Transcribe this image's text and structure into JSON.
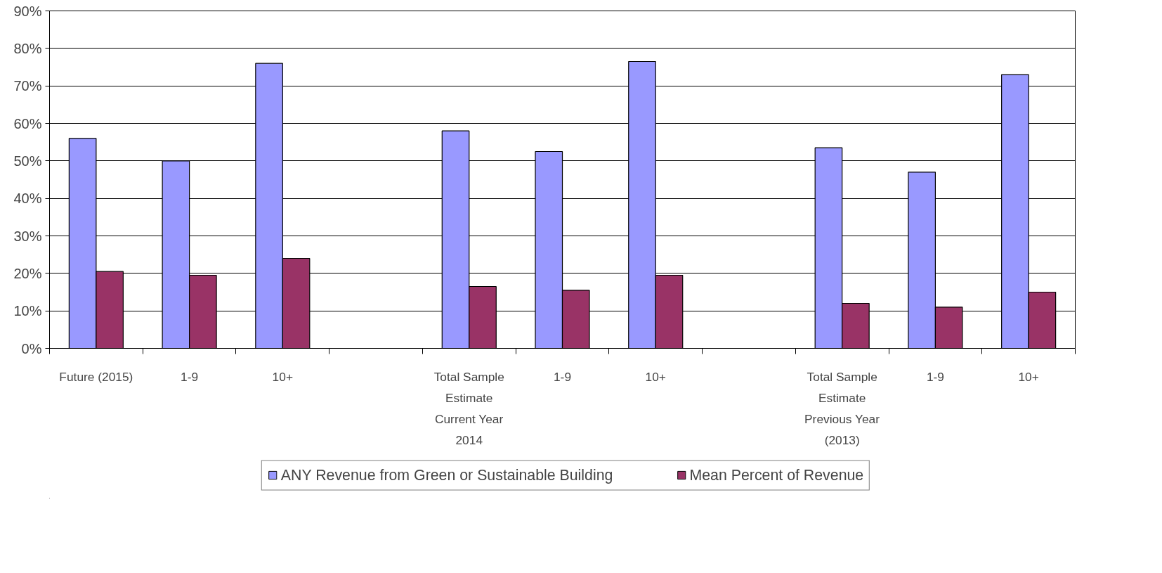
{
  "chart_data": {
    "type": "bar",
    "categories": [
      "Future (2015)",
      "1-9",
      "10+",
      null,
      "Total Sample\nEstimate\nCurrent Year\n2014",
      "1-9",
      "10+",
      null,
      "Total Sample\nEstimate\nPrevious Year\n(2013)",
      "1-9",
      "10+"
    ],
    "series": [
      {
        "name": "ANY Revenue from Green or Sustainable Building",
        "color": "#9999ff",
        "values": [
          56,
          50,
          76,
          null,
          58,
          52.5,
          76.5,
          null,
          53.5,
          47,
          73
        ]
      },
      {
        "name": "Mean Percent of Revenue",
        "color": "#993366",
        "values": [
          20.5,
          19.5,
          24,
          null,
          16.5,
          15.5,
          19.5,
          null,
          12,
          11,
          15
        ]
      }
    ],
    "ylim": [
      0,
      90
    ],
    "yticks": [
      {
        "value": 0,
        "label": "0%"
      },
      {
        "value": 10,
        "label": "10%"
      },
      {
        "value": 20,
        "label": "20%"
      },
      {
        "value": 30,
        "label": "30%"
      },
      {
        "value": 40,
        "label": "40%"
      },
      {
        "value": 50,
        "label": "50%"
      },
      {
        "value": 60,
        "label": "60%"
      },
      {
        "value": 70,
        "label": "70%"
      },
      {
        "value": 80,
        "label": "80%"
      },
      {
        "value": 90,
        "label": "90%"
      }
    ],
    "grid": "y",
    "legend": "bottom"
  }
}
